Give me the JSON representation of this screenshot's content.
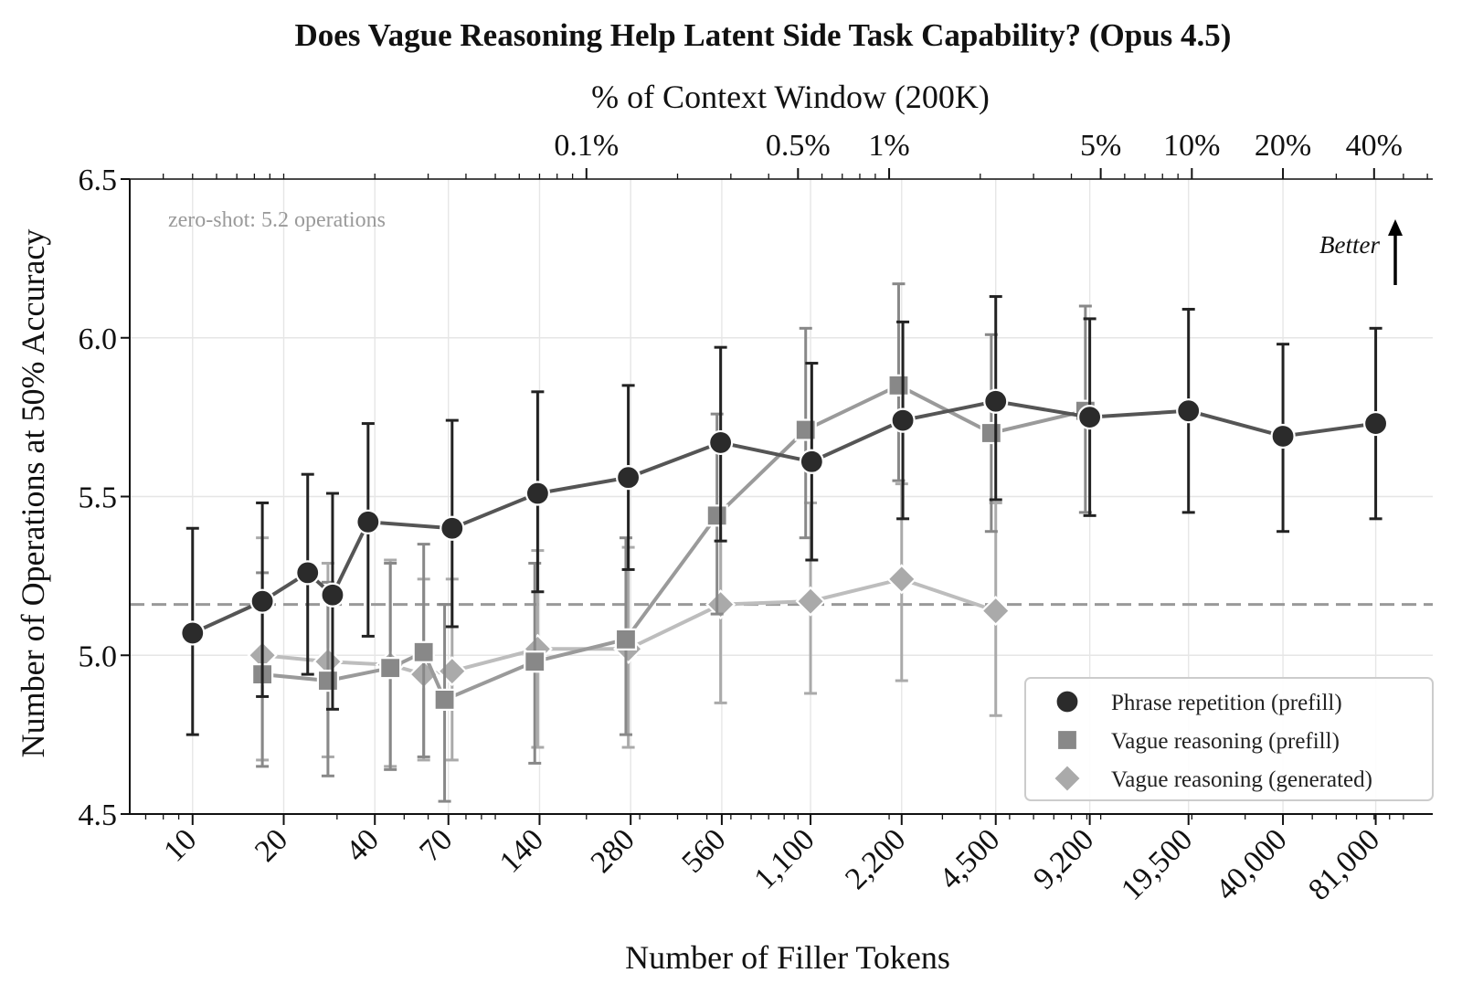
{
  "chart_data": {
    "type": "line",
    "title": "Does Vague Reasoning Help Latent Side Task Capability? (Opus 4.5)",
    "xlabel": "Number of Filler Tokens",
    "ylabel": "Number of Operations at 50% Accuracy",
    "top_xlabel": "% of Context Window (200K)",
    "x_scale": "log",
    "xlim": [
      6.2,
      125000
    ],
    "ylim": [
      4.5,
      6.5
    ],
    "y_ticks": [
      "4.5",
      "5.0",
      "5.5",
      "6.0",
      "6.5"
    ],
    "y_tick_values": [
      4.5,
      5.0,
      5.5,
      6.0,
      6.5
    ],
    "x_ticks": [
      10,
      20,
      40,
      70,
      140,
      280,
      560,
      1100,
      2200,
      4500,
      9200,
      19500,
      40000,
      81000
    ],
    "x_tick_labels": [
      "10",
      "20",
      "40",
      "70",
      "140",
      "280",
      "560",
      "1,100",
      "2,200",
      "4,500",
      "9,200",
      "19,500",
      "40,000",
      "81,000"
    ],
    "top_ticks": [
      {
        "label": "0.1%",
        "tokens": 200
      },
      {
        "label": "0.5%",
        "tokens": 1000
      },
      {
        "label": "1%",
        "tokens": 2000
      },
      {
        "label": "5%",
        "tokens": 10000
      },
      {
        "label": "10%",
        "tokens": 20000
      },
      {
        "label": "20%",
        "tokens": 40000
      },
      {
        "label": "40%",
        "tokens": 80000
      }
    ],
    "reference_line": {
      "y": 5.16,
      "label": "zero-shot: 5.2 operations"
    },
    "better_label": "Better",
    "legend_position": "lower-right",
    "series": [
      {
        "name": "Phrase repetition (prefill)",
        "marker": "circle",
        "color": "#2b2b2b",
        "line_color": "#555555",
        "points": [
          {
            "x": 10,
            "y": 5.07,
            "lo": 4.75,
            "hi": 5.4
          },
          {
            "x": 17,
            "y": 5.17,
            "lo": 4.87,
            "hi": 5.48
          },
          {
            "x": 24,
            "y": 5.26,
            "lo": 4.94,
            "hi": 5.57
          },
          {
            "x": 29,
            "y": 5.19,
            "lo": 4.83,
            "hi": 5.51
          },
          {
            "x": 38,
            "y": 5.42,
            "lo": 5.06,
            "hi": 5.73
          },
          {
            "x": 72,
            "y": 5.4,
            "lo": 5.09,
            "hi": 5.74
          },
          {
            "x": 138,
            "y": 5.51,
            "lo": 5.2,
            "hi": 5.83
          },
          {
            "x": 275,
            "y": 5.56,
            "lo": 5.27,
            "hi": 5.85
          },
          {
            "x": 555,
            "y": 5.67,
            "lo": 5.36,
            "hi": 5.97
          },
          {
            "x": 1110,
            "y": 5.61,
            "lo": 5.3,
            "hi": 5.92
          },
          {
            "x": 2220,
            "y": 5.74,
            "lo": 5.43,
            "hi": 6.05
          },
          {
            "x": 4500,
            "y": 5.8,
            "lo": 5.49,
            "hi": 6.13
          },
          {
            "x": 9200,
            "y": 5.75,
            "lo": 5.44,
            "hi": 6.06
          },
          {
            "x": 19500,
            "y": 5.77,
            "lo": 5.45,
            "hi": 6.09
          },
          {
            "x": 40000,
            "y": 5.69,
            "lo": 5.39,
            "hi": 5.98
          },
          {
            "x": 81000,
            "y": 5.73,
            "lo": 5.43,
            "hi": 6.03
          }
        ]
      },
      {
        "name": "Vague reasoning (prefill)",
        "marker": "square",
        "color": "#888888",
        "line_color": "#9a9a9a",
        "points": [
          {
            "x": 17,
            "y": 4.94,
            "lo": 4.65,
            "hi": 5.26
          },
          {
            "x": 28,
            "y": 4.92,
            "lo": 4.62,
            "hi": 5.23
          },
          {
            "x": 45,
            "y": 4.96,
            "lo": 4.64,
            "hi": 5.29
          },
          {
            "x": 58,
            "y": 5.01,
            "lo": 4.68,
            "hi": 5.35
          },
          {
            "x": 68,
            "y": 4.86,
            "lo": 4.54,
            "hi": 5.16
          },
          {
            "x": 135,
            "y": 4.98,
            "lo": 4.66,
            "hi": 5.29
          },
          {
            "x": 270,
            "y": 5.05,
            "lo": 4.75,
            "hi": 5.37
          },
          {
            "x": 540,
            "y": 5.44,
            "lo": 5.13,
            "hi": 5.76
          },
          {
            "x": 1060,
            "y": 5.71,
            "lo": 5.37,
            "hi": 6.03
          },
          {
            "x": 2150,
            "y": 5.85,
            "lo": 5.55,
            "hi": 6.17
          },
          {
            "x": 4350,
            "y": 5.7,
            "lo": 5.39,
            "hi": 6.01
          },
          {
            "x": 8900,
            "y": 5.77,
            "lo": 5.45,
            "hi": 6.1
          }
        ]
      },
      {
        "name": "Vague reasoning (generated)",
        "marker": "diamond",
        "color": "#aaaaaa",
        "line_color": "#bdbdbd",
        "points": [
          {
            "x": 17,
            "y": 5.0,
            "lo": 4.67,
            "hi": 5.37
          },
          {
            "x": 28,
            "y": 4.98,
            "lo": 4.68,
            "hi": 5.29
          },
          {
            "x": 45,
            "y": 4.97,
            "lo": 4.65,
            "hi": 5.3
          },
          {
            "x": 58,
            "y": 4.94,
            "lo": 4.67,
            "hi": 5.24
          },
          {
            "x": 72,
            "y": 4.95,
            "lo": 4.67,
            "hi": 5.24
          },
          {
            "x": 138,
            "y": 5.02,
            "lo": 4.71,
            "hi": 5.33
          },
          {
            "x": 275,
            "y": 5.02,
            "lo": 4.71,
            "hi": 5.34
          },
          {
            "x": 555,
            "y": 5.16,
            "lo": 4.85,
            "hi": 5.47
          },
          {
            "x": 1100,
            "y": 5.17,
            "lo": 4.88,
            "hi": 5.48
          },
          {
            "x": 2200,
            "y": 5.24,
            "lo": 4.92,
            "hi": 5.54
          },
          {
            "x": 4500,
            "y": 5.14,
            "lo": 4.81,
            "hi": 5.48
          }
        ]
      }
    ]
  }
}
